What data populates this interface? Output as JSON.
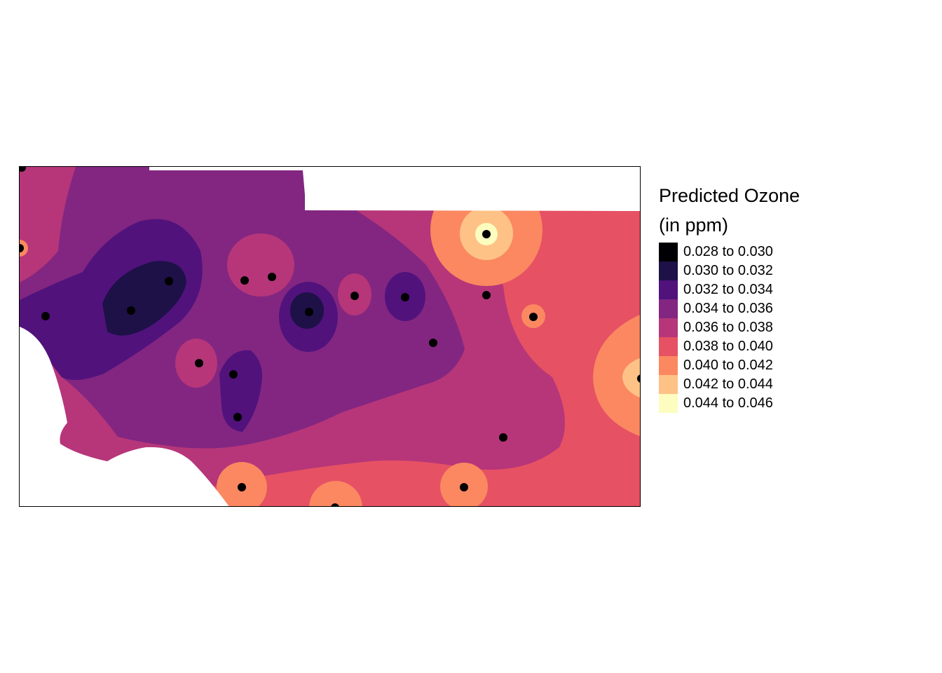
{
  "legend": {
    "title_line1": "Predicted Ozone",
    "title_line2": "(in ppm)",
    "classes": [
      {
        "label": "0.028 to 0.030",
        "color": "#000004"
      },
      {
        "label": "0.030 to 0.032",
        "color": "#1d1147"
      },
      {
        "label": "0.032 to 0.034",
        "color": "#51127c"
      },
      {
        "label": "0.034 to 0.036",
        "color": "#822681"
      },
      {
        "label": "0.036 to 0.038",
        "color": "#b63679"
      },
      {
        "label": "0.038 to 0.040",
        "color": "#e65164"
      },
      {
        "label": "0.040 to 0.042",
        "color": "#fb8861"
      },
      {
        "label": "0.042 to 0.044",
        "color": "#fec287"
      },
      {
        "label": "0.044 to 0.046",
        "color": "#fcfdbf"
      }
    ]
  },
  "map": {
    "point_color": "#000000",
    "missing_color": "#ffffff"
  }
}
